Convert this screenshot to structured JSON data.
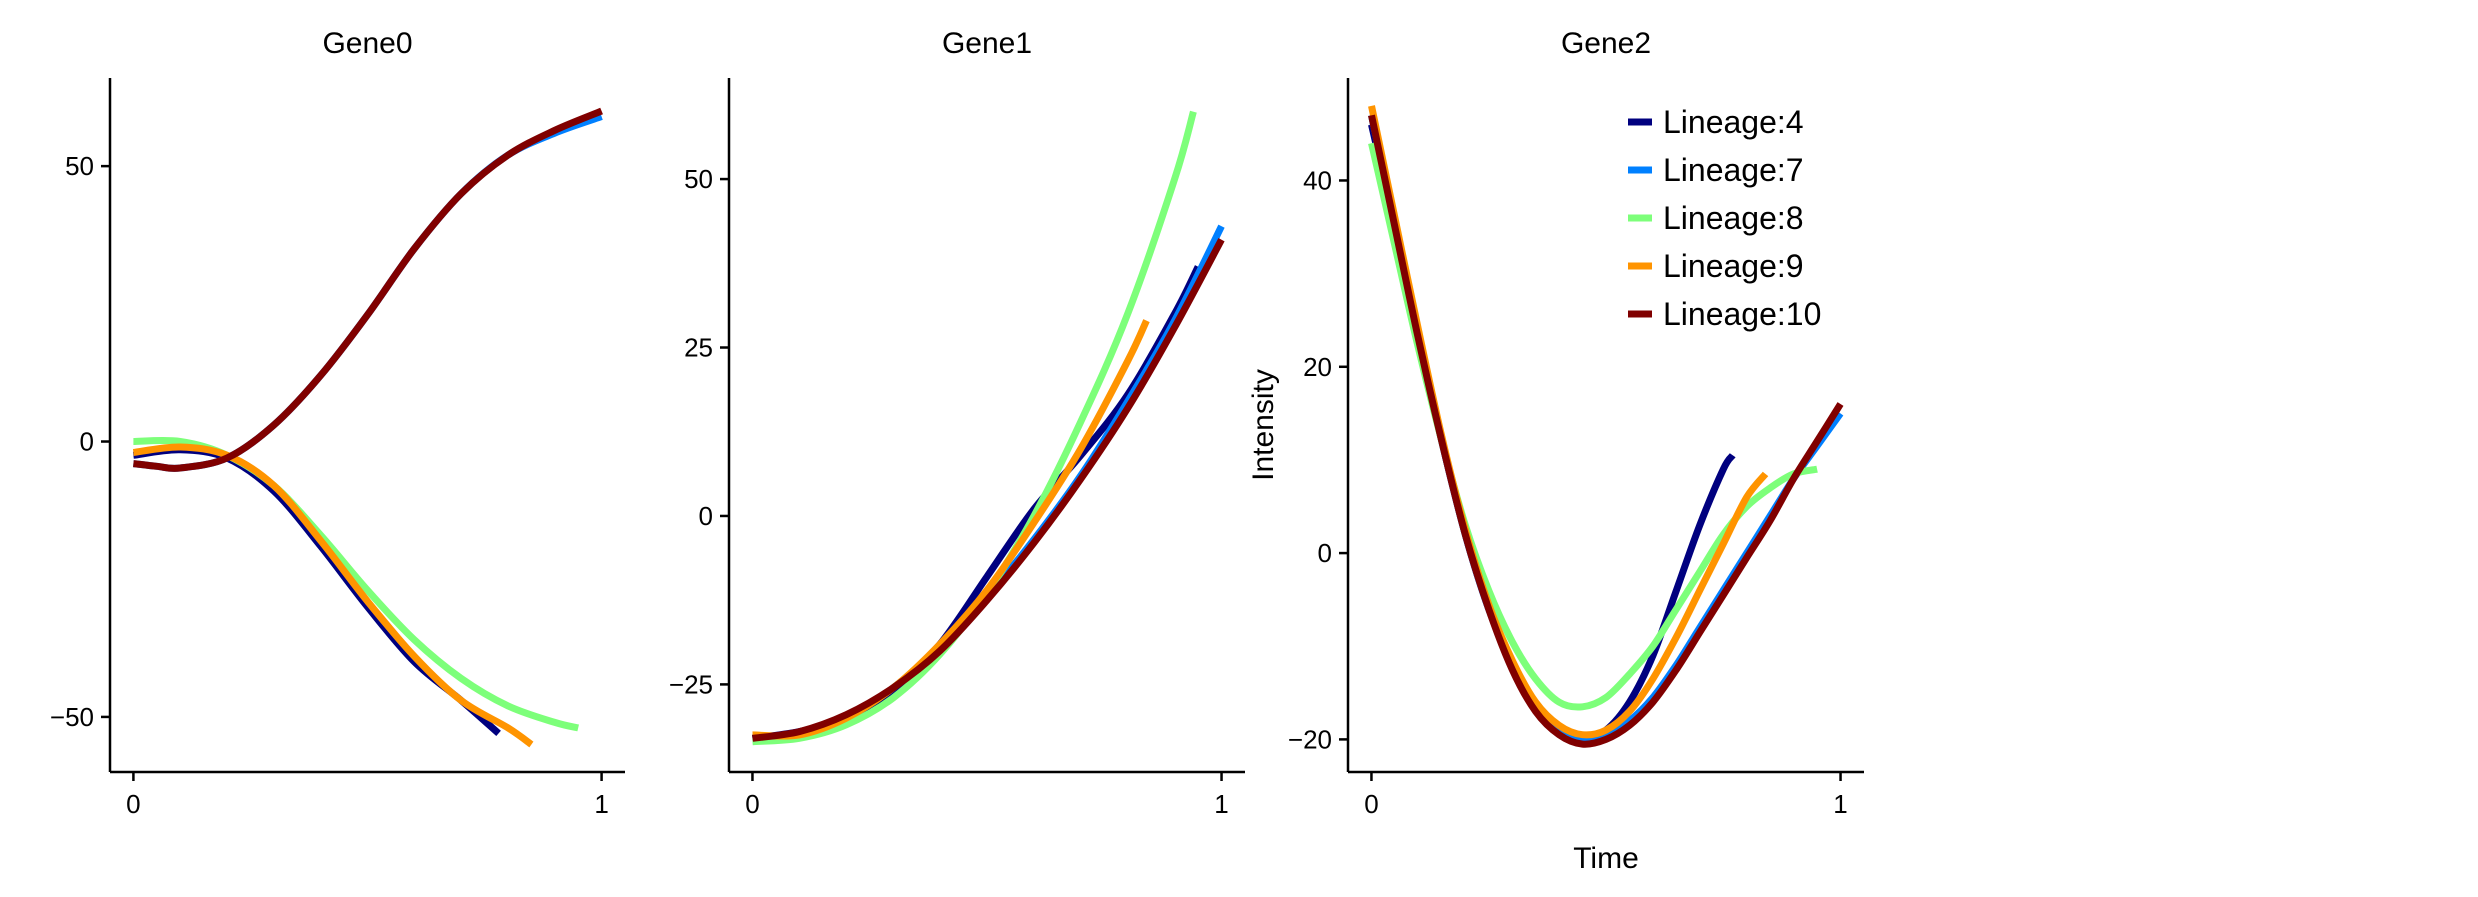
{
  "chart_data": [
    {
      "type": "line",
      "title": "Gene0",
      "xlabel": "",
      "ylabel": "",
      "xlim": [
        -0.05,
        1.05
      ],
      "ylim": [
        -60,
        66
      ],
      "xticks": [
        0,
        1
      ],
      "yticks": [
        -50,
        0,
        50
      ],
      "grid": false,
      "series": [
        {
          "name": "Lineage:4",
          "color": "#00007f",
          "x": [
            0,
            0.1,
            0.2,
            0.3,
            0.4,
            0.5,
            0.6,
            0.7,
            0.78
          ],
          "y": [
            -2.5,
            -1.5,
            -3,
            -9,
            -19,
            -30,
            -40,
            -47,
            -53
          ]
        },
        {
          "name": "Lineage:7",
          "color": "#0080ff",
          "x": [
            0,
            0.05,
            0.1,
            0.2,
            0.3,
            0.4,
            0.5,
            0.6,
            0.7,
            0.8,
            0.9,
            1.0
          ],
          "y": [
            -4,
            -4.5,
            -4.8,
            -3,
            3,
            12,
            23,
            35,
            45,
            52,
            56,
            59
          ]
        },
        {
          "name": "Lineage:8",
          "color": "#7dff7a",
          "x": [
            0,
            0.1,
            0.2,
            0.3,
            0.4,
            0.5,
            0.6,
            0.7,
            0.8,
            0.9,
            0.95
          ],
          "y": [
            0,
            0,
            -2.5,
            -8,
            -17,
            -27,
            -36,
            -43,
            -48,
            -51,
            -52
          ]
        },
        {
          "name": "Lineage:9",
          "color": "#ff9400",
          "x": [
            0,
            0.1,
            0.2,
            0.3,
            0.4,
            0.5,
            0.6,
            0.7,
            0.8,
            0.85
          ],
          "y": [
            -2,
            -1,
            -2.5,
            -8,
            -18,
            -29,
            -39,
            -47,
            -52,
            -55
          ]
        },
        {
          "name": "Lineage:10",
          "color": "#800000",
          "x": [
            0,
            0.05,
            0.1,
            0.2,
            0.3,
            0.4,
            0.5,
            0.6,
            0.7,
            0.8,
            0.9,
            1.0
          ],
          "y": [
            -4,
            -4.5,
            -4.8,
            -3,
            3,
            12,
            23,
            35,
            45,
            52,
            56.5,
            60
          ]
        }
      ]
    },
    {
      "type": "line",
      "title": "Gene1",
      "xlabel": "",
      "ylabel": "",
      "xlim": [
        -0.05,
        1.05
      ],
      "ylim": [
        -38,
        65
      ],
      "xticks": [
        0,
        1
      ],
      "yticks": [
        -25,
        0,
        25,
        50
      ],
      "grid": false,
      "series": [
        {
          "name": "Lineage:4",
          "color": "#00007f",
          "x": [
            0,
            0.1,
            0.2,
            0.3,
            0.4,
            0.5,
            0.6,
            0.7,
            0.8,
            0.9,
            0.95
          ],
          "y": [
            -33,
            -32,
            -30,
            -26,
            -19,
            -9,
            1,
            9,
            18,
            30,
            37
          ]
        },
        {
          "name": "Lineage:7",
          "color": "#0080ff",
          "x": [
            0,
            0.1,
            0.2,
            0.3,
            0.4,
            0.5,
            0.6,
            0.7,
            0.8,
            0.9,
            1.0
          ],
          "y": [
            -33,
            -32.5,
            -30,
            -25.5,
            -19.5,
            -12,
            -3.5,
            6,
            17,
            29,
            43
          ]
        },
        {
          "name": "Lineage:8",
          "color": "#7dff7a",
          "x": [
            0,
            0.1,
            0.2,
            0.3,
            0.4,
            0.5,
            0.6,
            0.7,
            0.8,
            0.9,
            0.94
          ],
          "y": [
            -33.5,
            -33,
            -31,
            -27,
            -20.5,
            -11.5,
            0,
            14,
            30,
            50,
            60
          ]
        },
        {
          "name": "Lineage:9",
          "color": "#ff9400",
          "x": [
            0,
            0.1,
            0.2,
            0.3,
            0.4,
            0.5,
            0.6,
            0.7,
            0.8,
            0.84
          ],
          "y": [
            -32.5,
            -32.5,
            -30,
            -25.5,
            -19,
            -11,
            -1,
            10,
            23,
            29
          ]
        },
        {
          "name": "Lineage:10",
          "color": "#800000",
          "x": [
            0,
            0.1,
            0.2,
            0.3,
            0.4,
            0.5,
            0.6,
            0.7,
            0.8,
            0.9,
            1.0
          ],
          "y": [
            -33,
            -32,
            -29.5,
            -25.5,
            -20,
            -12.5,
            -4,
            5.5,
            16,
            28,
            41
          ]
        }
      ]
    },
    {
      "type": "line",
      "title": "Gene2",
      "xlabel": "Time",
      "ylabel": "Intensity",
      "xlim": [
        -0.05,
        1.05
      ],
      "ylim": [
        -23.5,
        51
      ],
      "xticks": [
        0,
        1
      ],
      "yticks": [
        -20,
        0,
        20,
        40
      ],
      "grid": false,
      "legend": "top-right",
      "series": [
        {
          "name": "Lineage:4",
          "color": "#00007f",
          "x": [
            0,
            0.05,
            0.1,
            0.15,
            0.2,
            0.25,
            0.3,
            0.35,
            0.4,
            0.45,
            0.5,
            0.55,
            0.6,
            0.65,
            0.7,
            0.75,
            0.77
          ],
          "y": [
            46,
            35,
            23,
            12,
            2,
            -6,
            -12,
            -16.5,
            -19,
            -20,
            -19,
            -16,
            -11,
            -4,
            3,
            9,
            10.5
          ]
        },
        {
          "name": "Lineage:7",
          "color": "#0080ff",
          "x": [
            0,
            0.05,
            0.1,
            0.15,
            0.2,
            0.25,
            0.3,
            0.35,
            0.4,
            0.45,
            0.5,
            0.55,
            0.6,
            0.65,
            0.7,
            0.75,
            0.8,
            0.85,
            0.9,
            0.95,
            1.0
          ],
          "y": [
            47,
            35,
            23,
            12,
            2,
            -6,
            -12,
            -16.5,
            -19,
            -20,
            -19.5,
            -18,
            -15.5,
            -12,
            -8,
            -4,
            0,
            4,
            8,
            11.5,
            15
          ]
        },
        {
          "name": "Lineage:8",
          "color": "#7dff7a",
          "x": [
            0,
            0.05,
            0.1,
            0.15,
            0.2,
            0.25,
            0.3,
            0.35,
            0.4,
            0.45,
            0.5,
            0.55,
            0.6,
            0.65,
            0.7,
            0.75,
            0.8,
            0.85,
            0.9,
            0.95
          ],
          "y": [
            44,
            33,
            22,
            12,
            3,
            -4,
            -9.5,
            -13.5,
            -16,
            -16.5,
            -15.5,
            -13,
            -10,
            -6,
            -2,
            2,
            5,
            7,
            8.5,
            9
          ]
        },
        {
          "name": "Lineage:9",
          "color": "#ff9400",
          "x": [
            0,
            0.05,
            0.1,
            0.15,
            0.2,
            0.25,
            0.3,
            0.35,
            0.4,
            0.45,
            0.5,
            0.55,
            0.6,
            0.65,
            0.7,
            0.75,
            0.8,
            0.84
          ],
          "y": [
            48,
            36,
            24,
            12.5,
            2.5,
            -5.5,
            -11.5,
            -16,
            -18.5,
            -19.5,
            -19,
            -17,
            -13.5,
            -9,
            -4,
            1,
            6,
            8.5
          ]
        },
        {
          "name": "Lineage:10",
          "color": "#800000",
          "x": [
            0,
            0.05,
            0.1,
            0.15,
            0.2,
            0.25,
            0.3,
            0.35,
            0.4,
            0.45,
            0.5,
            0.55,
            0.6,
            0.65,
            0.7,
            0.75,
            0.8,
            0.85,
            0.9,
            0.95,
            1.0
          ],
          "y": [
            47,
            35,
            23,
            12,
            2,
            -6,
            -12.5,
            -17,
            -19.5,
            -20.5,
            -20,
            -18.5,
            -16,
            -12.5,
            -8.5,
            -4.5,
            -0.5,
            3.5,
            8,
            12,
            16
          ]
        }
      ]
    }
  ]
}
